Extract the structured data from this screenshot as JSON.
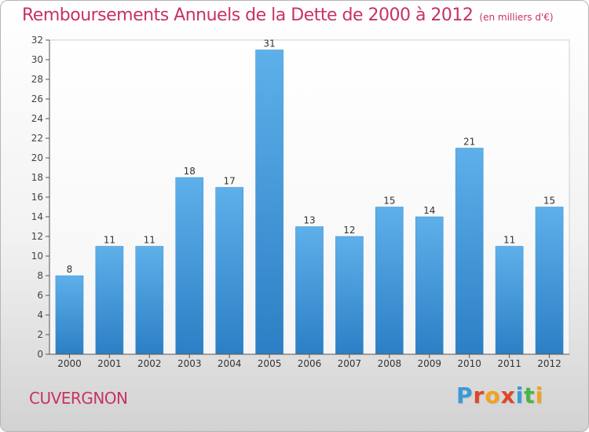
{
  "header": {
    "title": "Remboursements Annuels de la Dette de 2000 à 2012",
    "unit": "(en milliers d'€)"
  },
  "footer": {
    "city": "CUVERGNON",
    "brand": [
      "P",
      "r",
      "o",
      "x",
      "i",
      "t",
      "i"
    ],
    "brand_colors": [
      "#3a9ad9",
      "#e0452c",
      "#f2a31b",
      "#e0452c",
      "#3a9ad9",
      "#49b54a",
      "#f2a31b"
    ]
  },
  "chart_data": {
    "type": "bar",
    "title": "Remboursements Annuels de la Dette de 2000 à 2012",
    "xlabel": "",
    "ylabel": "",
    "categories": [
      "2000",
      "2001",
      "2002",
      "2003",
      "2004",
      "2005",
      "2006",
      "2007",
      "2008",
      "2009",
      "2010",
      "2011",
      "2012"
    ],
    "values": [
      8,
      11,
      11,
      18,
      17,
      31,
      13,
      12,
      15,
      14,
      21,
      11,
      15
    ],
    "ylim": [
      0,
      32
    ],
    "yticks": [
      0,
      2,
      4,
      6,
      8,
      10,
      12,
      14,
      16,
      18,
      20,
      22,
      24,
      26,
      28,
      30,
      32
    ],
    "grid": false,
    "bar_color": "#4fa6e3"
  }
}
